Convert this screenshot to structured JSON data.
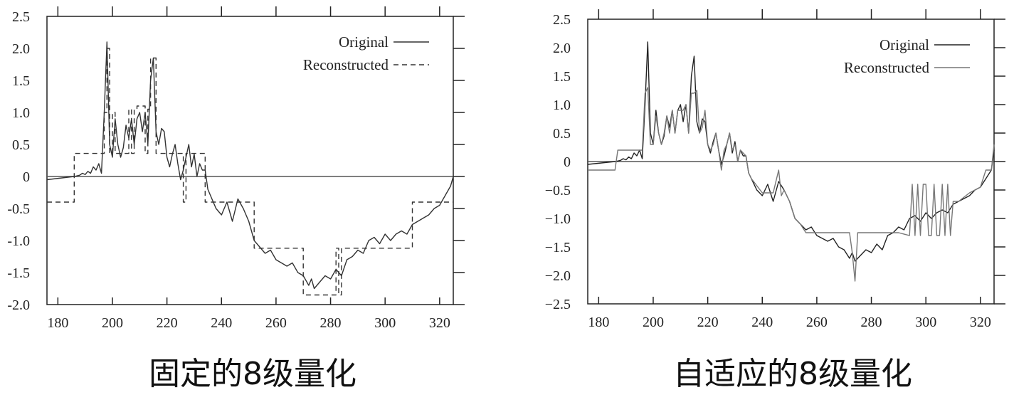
{
  "chart_data": [
    {
      "type": "line",
      "caption": "固定的8级量化",
      "xlim": [
        176,
        325
      ],
      "ylim": [
        -2.0,
        2.5
      ],
      "xticks": [
        180,
        200,
        220,
        240,
        260,
        280,
        300,
        320
      ],
      "yticks": [
        -2.0,
        -1.5,
        -1.0,
        -0.5,
        0,
        0.5,
        1.0,
        1.5,
        2.0,
        2.5
      ],
      "ytick_labels": [
        "-2.0",
        "-1.5",
        "-1.0",
        "-0.5",
        "0",
        "0.5",
        "1.0",
        "1.5",
        "2.0",
        "2.5"
      ],
      "legend_position": "top-right",
      "series": [
        {
          "name": "Original",
          "style": "solid",
          "color": "#333333",
          "x": [
            176,
            186,
            188,
            189,
            190,
            191,
            192,
            193,
            194,
            195,
            196,
            197,
            198,
            199,
            200,
            201,
            202,
            203,
            204,
            205,
            206,
            207,
            208,
            209,
            210,
            211,
            212,
            213,
            214,
            215,
            216,
            217,
            218,
            219,
            220,
            221,
            222,
            223,
            224,
            225,
            226,
            227,
            228,
            229,
            230,
            231,
            232,
            233,
            234,
            235,
            236,
            238,
            240,
            242,
            244,
            246,
            248,
            250,
            252,
            254,
            256,
            258,
            260,
            262,
            264,
            266,
            268,
            270,
            272,
            273,
            274,
            276,
            278,
            280,
            282,
            284,
            286,
            288,
            290,
            292,
            294,
            296,
            298,
            300,
            302,
            304,
            306,
            308,
            310,
            312,
            314,
            316,
            318,
            320,
            322,
            324,
            325
          ],
          "y": [
            -0.05,
            0.0,
            0.02,
            0.05,
            0.03,
            0.08,
            0.05,
            0.15,
            0.1,
            0.2,
            0.05,
            1.0,
            2.1,
            0.5,
            0.3,
            0.9,
            0.5,
            0.3,
            0.45,
            0.8,
            0.6,
            0.9,
            0.5,
            0.9,
            1.0,
            0.7,
            1.0,
            0.5,
            1.5,
            1.85,
            0.7,
            0.5,
            0.75,
            0.7,
            0.3,
            0.15,
            0.35,
            0.5,
            0.2,
            -0.05,
            0.1,
            0.3,
            0.5,
            0.15,
            0.35,
            0.0,
            0.2,
            0.1,
            0.1,
            -0.2,
            -0.3,
            -0.5,
            -0.6,
            -0.4,
            -0.7,
            -0.35,
            -0.5,
            -0.7,
            -1.0,
            -1.1,
            -1.2,
            -1.15,
            -1.3,
            -1.35,
            -1.4,
            -1.35,
            -1.5,
            -1.55,
            -1.7,
            -1.6,
            -1.75,
            -1.65,
            -1.55,
            -1.6,
            -1.45,
            -1.55,
            -1.3,
            -1.25,
            -1.15,
            -1.2,
            -1.0,
            -0.95,
            -1.05,
            -0.9,
            -1.0,
            -0.9,
            -0.85,
            -0.9,
            -0.75,
            -0.7,
            -0.65,
            -0.6,
            -0.5,
            -0.45,
            -0.3,
            -0.15,
            0.0
          ]
        },
        {
          "name": "Reconstructed",
          "style": "dashed",
          "color": "#333333",
          "x": [
            176,
            186,
            186,
            197,
            197,
            198,
            198,
            199,
            199,
            200,
            200,
            201,
            201,
            202,
            202,
            206,
            206,
            207,
            207,
            208,
            208,
            209,
            209,
            212,
            212,
            213,
            213,
            214,
            214,
            216,
            216,
            217,
            217,
            226,
            226,
            227,
            227,
            234,
            234,
            235,
            235,
            252,
            252,
            259,
            259,
            270,
            270,
            282,
            282,
            283,
            283,
            284,
            284,
            310,
            310,
            311,
            311,
            325
          ],
          "y": [
            -0.4,
            -0.4,
            0.36,
            0.36,
            1.0,
            1.0,
            2.0,
            2.0,
            0.36,
            0.36,
            1.0,
            1.0,
            0.36,
            0.36,
            0.36,
            0.36,
            1.05,
            1.05,
            0.36,
            0.36,
            1.05,
            1.05,
            1.1,
            1.1,
            0.36,
            0.36,
            1.05,
            1.05,
            1.85,
            1.85,
            0.36,
            0.36,
            0.36,
            0.36,
            -0.4,
            -0.4,
            0.36,
            0.36,
            -0.4,
            -0.4,
            -0.4,
            -0.4,
            -1.12,
            -1.12,
            -1.12,
            -1.12,
            -1.85,
            -1.85,
            -1.12,
            -1.12,
            -1.85,
            -1.85,
            -1.12,
            -1.12,
            -0.4,
            -0.4,
            -0.4,
            -0.4
          ]
        }
      ]
    },
    {
      "type": "line",
      "caption": "自适应的8级量化",
      "xlim": [
        176,
        325
      ],
      "ylim": [
        -2.5,
        2.5
      ],
      "xticks": [
        180,
        200,
        220,
        240,
        260,
        280,
        300,
        320
      ],
      "yticks": [
        -2.5,
        -2.0,
        -1.5,
        -1.0,
        -0.5,
        0,
        0.5,
        1.0,
        1.5,
        2.0,
        2.5
      ],
      "ytick_labels": [
        "−2.5",
        "−2.0",
        "−1.5",
        "−1.0",
        "−0.5",
        "0",
        "0.5",
        "1.0",
        "1.5",
        "2.0",
        "2.5"
      ],
      "legend_position": "top-right",
      "series": [
        {
          "name": "Original",
          "style": "solid",
          "color": "#222222",
          "x": [
            176,
            186,
            188,
            189,
            190,
            191,
            192,
            193,
            194,
            195,
            196,
            197,
            198,
            199,
            200,
            201,
            202,
            203,
            204,
            205,
            206,
            207,
            208,
            209,
            210,
            211,
            212,
            213,
            214,
            215,
            216,
            217,
            218,
            219,
            220,
            221,
            222,
            223,
            224,
            225,
            226,
            227,
            228,
            229,
            230,
            231,
            232,
            233,
            234,
            235,
            236,
            238,
            240,
            242,
            244,
            246,
            248,
            250,
            252,
            254,
            256,
            258,
            260,
            262,
            264,
            266,
            268,
            270,
            272,
            273,
            274,
            276,
            278,
            280,
            282,
            284,
            286,
            288,
            290,
            292,
            294,
            296,
            298,
            300,
            302,
            304,
            306,
            308,
            310,
            312,
            314,
            316,
            318,
            320,
            322,
            324,
            325
          ],
          "y": [
            -0.05,
            0.0,
            0.02,
            0.05,
            0.03,
            0.08,
            0.05,
            0.15,
            0.1,
            0.2,
            0.05,
            1.0,
            2.1,
            0.5,
            0.3,
            0.9,
            0.5,
            0.3,
            0.45,
            0.8,
            0.6,
            0.9,
            0.5,
            0.9,
            1.0,
            0.7,
            1.0,
            0.5,
            1.5,
            1.85,
            0.7,
            0.5,
            0.75,
            0.7,
            0.3,
            0.15,
            0.35,
            0.5,
            0.2,
            -0.05,
            0.1,
            0.3,
            0.5,
            0.15,
            0.35,
            0.0,
            0.2,
            0.1,
            0.1,
            -0.2,
            -0.3,
            -0.5,
            -0.6,
            -0.4,
            -0.7,
            -0.35,
            -0.5,
            -0.7,
            -1.0,
            -1.1,
            -1.2,
            -1.15,
            -1.3,
            -1.35,
            -1.4,
            -1.35,
            -1.5,
            -1.55,
            -1.7,
            -1.6,
            -1.75,
            -1.65,
            -1.55,
            -1.6,
            -1.45,
            -1.55,
            -1.3,
            -1.25,
            -1.15,
            -1.2,
            -1.0,
            -0.95,
            -1.05,
            -0.9,
            -1.0,
            -0.9,
            -0.85,
            -0.9,
            -0.75,
            -0.7,
            -0.65,
            -0.6,
            -0.5,
            -0.45,
            -0.3,
            -0.15,
            0.2
          ]
        },
        {
          "name": "Reconstructed",
          "style": "solid",
          "color": "#777777",
          "x": [
            176,
            186,
            187,
            196,
            197,
            198,
            199,
            200,
            201,
            202,
            203,
            204,
            205,
            206,
            207,
            208,
            209,
            210,
            211,
            212,
            213,
            214,
            215,
            216,
            217,
            218,
            219,
            220,
            221,
            222,
            223,
            224,
            225,
            226,
            227,
            228,
            229,
            230,
            231,
            232,
            233,
            234,
            235,
            236,
            240,
            244,
            246,
            247,
            248,
            250,
            252,
            254,
            256,
            258,
            272,
            273,
            274,
            275,
            290,
            294,
            295,
            296,
            297,
            298,
            299,
            300,
            301,
            302,
            303,
            304,
            305,
            306,
            307,
            308,
            309,
            310,
            312,
            316,
            320,
            322,
            324,
            325
          ],
          "y": [
            -0.15,
            -0.15,
            0.2,
            0.2,
            1.2,
            1.3,
            0.3,
            0.3,
            0.8,
            0.5,
            0.3,
            0.5,
            0.8,
            0.5,
            0.9,
            0.5,
            0.9,
            0.9,
            0.9,
            1.0,
            0.5,
            1.2,
            1.2,
            1.25,
            0.5,
            0.6,
            0.9,
            0.3,
            0.2,
            0.3,
            0.5,
            0.2,
            -0.15,
            0.2,
            0.3,
            0.5,
            0.2,
            0.3,
            0.0,
            0.2,
            0.15,
            0.1,
            -0.2,
            -0.3,
            -0.55,
            -0.55,
            -0.15,
            -0.6,
            -0.5,
            -0.7,
            -1.0,
            -1.1,
            -1.25,
            -1.25,
            -1.25,
            -1.6,
            -2.1,
            -1.25,
            -1.25,
            -1.3,
            -0.4,
            -1.3,
            -0.4,
            -1.3,
            -0.4,
            -0.4,
            -1.3,
            -1.3,
            -0.4,
            -1.3,
            -1.3,
            -0.4,
            -1.3,
            -0.4,
            -1.3,
            -0.7,
            -0.7,
            -0.55,
            -0.45,
            -0.15,
            -0.15,
            0.3
          ]
        }
      ]
    }
  ]
}
